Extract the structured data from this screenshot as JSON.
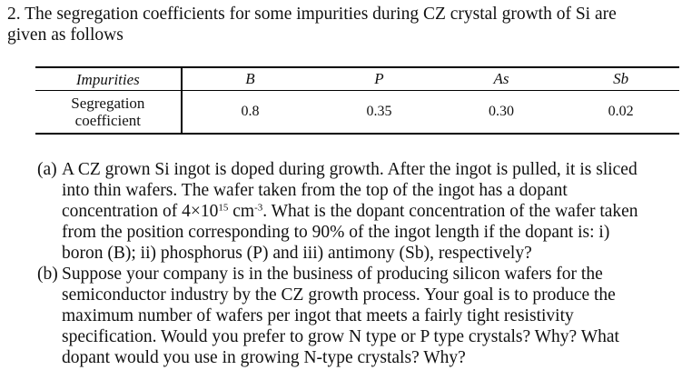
{
  "problem": {
    "number": "2.",
    "intro_lines": [
      "2. The segregation coefficients for some impurities during CZ crystal growth of Si are",
      "given as follows"
    ]
  },
  "table": {
    "header_label": "Impurities",
    "row_label_line1": "Segregation",
    "row_label_line2": "coefficient",
    "columns": [
      {
        "impurity": "B",
        "coefficient": "0.8"
      },
      {
        "impurity": "P",
        "coefficient": "0.35"
      },
      {
        "impurity": "As",
        "coefficient": "0.30"
      },
      {
        "impurity": "Sb",
        "coefficient": "0.02"
      }
    ]
  },
  "questions": {
    "a": {
      "label": "(a)",
      "line1": "A CZ grown Si ingot is doped during growth. After the ingot is pulled, it is sliced",
      "line2": "into thin wafers. The wafer taken from the top of the ingot has a dopant",
      "line3_pre": "concentration of 4×10",
      "line3_exp1": "15",
      "line3_mid": " cm",
      "line3_exp2": "-3",
      "line3_post": ". What is the dopant concentration of the wafer taken",
      "line4": "from the position corresponding to 90% of the ingot length if the dopant is: i)",
      "line5": "boron (B); ii) phosphorus (P) and iii) antimony (Sb), respectively?"
    },
    "b": {
      "label": "(b)",
      "line1": "Suppose your company is in the business of producing silicon wafers for the",
      "line2": "semiconductor industry by the CZ growth process. Your goal is to produce the",
      "line3": "maximum number of wafers per ingot that meets a fairly tight resistivity",
      "line4": "specification. Would you prefer to grow N type or P type crystals? Why? What",
      "line5": "dopant would you use in growing N-type crystals? Why?"
    }
  }
}
